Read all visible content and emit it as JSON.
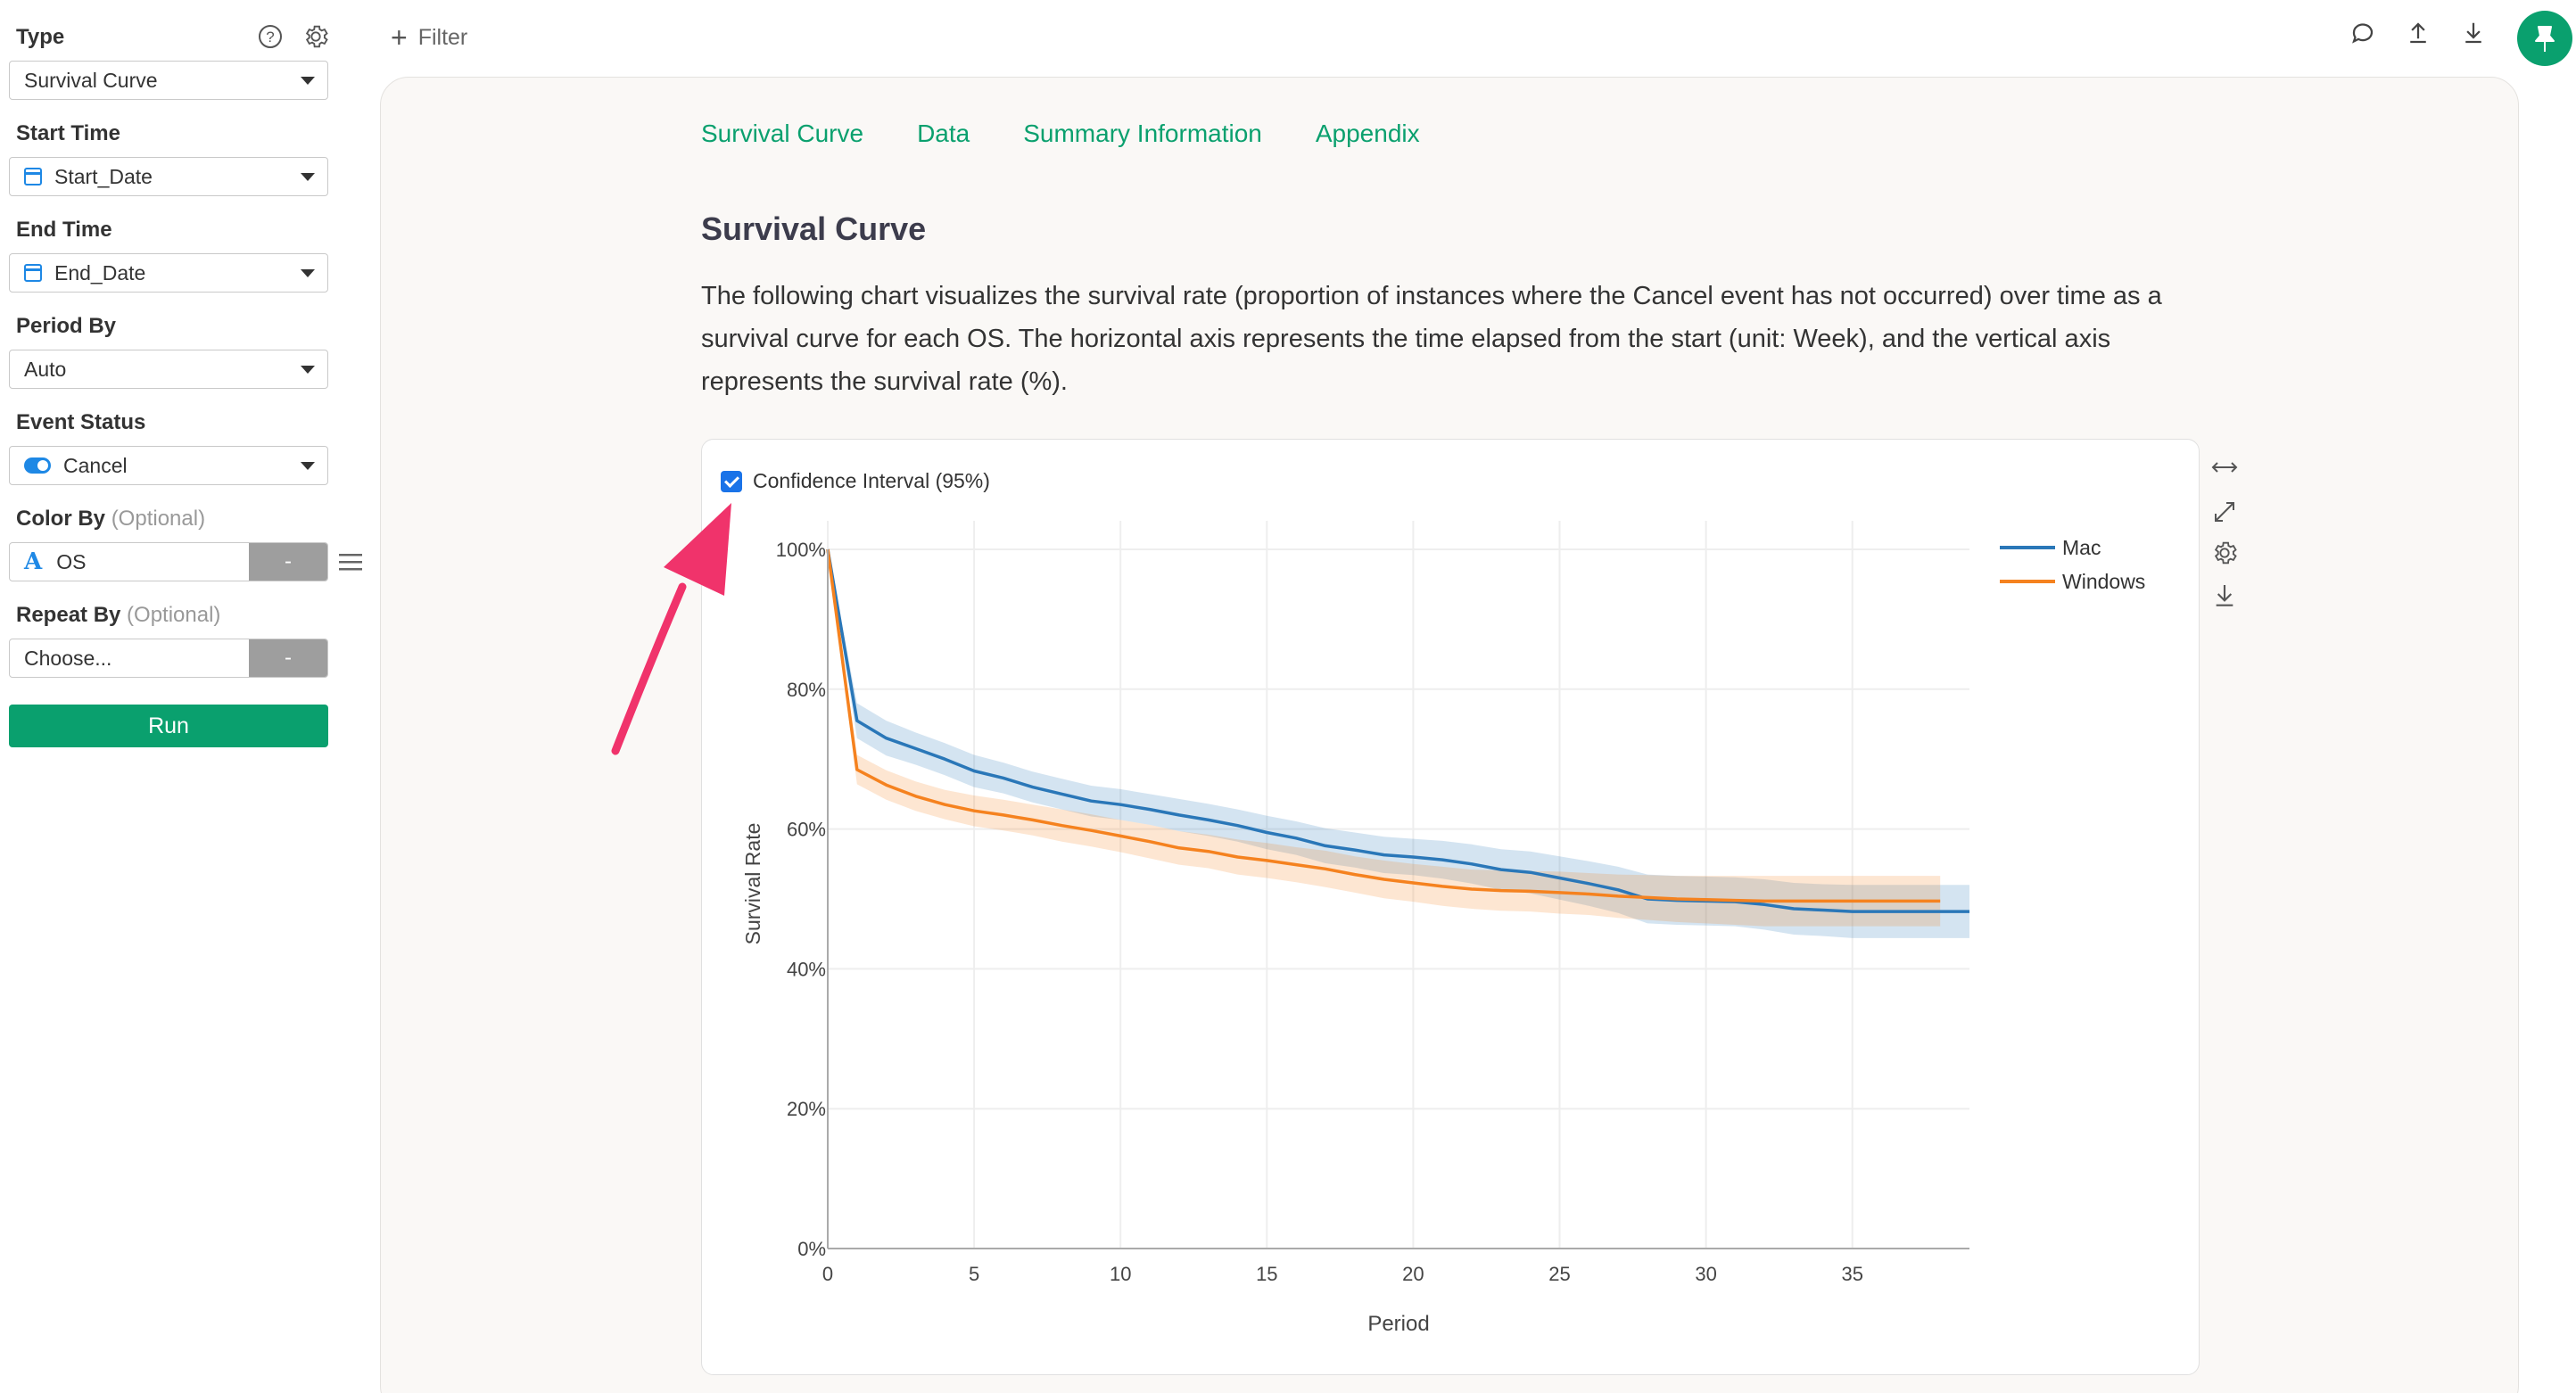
{
  "sidebar": {
    "type": {
      "label": "Type",
      "value": "Survival Curve"
    },
    "start_time": {
      "label": "Start Time",
      "value": "Start_Date"
    },
    "end_time": {
      "label": "End Time",
      "value": "End_Date"
    },
    "period_by": {
      "label": "Period By",
      "value": "Auto"
    },
    "event_status": {
      "label": "Event Status",
      "value": "Cancel"
    },
    "color_by": {
      "label": "Color By",
      "optional": "(Optional)",
      "value": "OS",
      "button": "-"
    },
    "repeat_by": {
      "label": "Repeat By",
      "optional": "(Optional)",
      "value": "Choose...",
      "button": "-"
    },
    "run_label": "Run"
  },
  "topbar": {
    "filter_label": "Filter"
  },
  "tabs": [
    "Survival Curve",
    "Data",
    "Summary Information",
    "Appendix"
  ],
  "section": {
    "title": "Survival Curve",
    "description": "The following chart visualizes the survival rate (proportion of instances where the Cancel event has not occurred) over time as a survival curve for each OS. The horizontal axis represents the time elapsed from the start (unit: Week), and the vertical axis represents the survival rate (%)."
  },
  "confidence_interval": {
    "label": "Confidence Interval (95%)",
    "checked": true
  },
  "colors": {
    "accent": "#0aa06e",
    "mac": "#2a77b8",
    "windows": "#f5821f",
    "arrow": "#f0336b"
  },
  "chart_data": {
    "type": "line",
    "xlabel": "Period",
    "ylabel": "Survival Rate",
    "xlim": [
      0,
      39
    ],
    "ylim": [
      0,
      100
    ],
    "x_ticks": [
      0,
      5,
      10,
      15,
      20,
      25,
      30,
      35
    ],
    "y_ticks": [
      "0%",
      "20%",
      "40%",
      "60%",
      "80%",
      "100%"
    ],
    "y_tick_values": [
      0,
      20,
      40,
      60,
      80,
      100
    ],
    "legend_position": "top-right",
    "grid": true,
    "series": [
      {
        "name": "Mac",
        "color": "#2a77b8",
        "x": [
          0,
          1,
          2,
          3,
          4,
          5,
          6,
          7,
          8,
          9,
          10,
          11,
          12,
          13,
          14,
          15,
          16,
          17,
          18,
          19,
          20,
          21,
          22,
          23,
          24,
          25,
          26,
          27,
          28,
          29,
          30,
          31,
          32,
          33,
          34,
          35,
          36,
          37,
          38,
          39
        ],
        "values": [
          100,
          75.5,
          73,
          71.5,
          70,
          68.3,
          67.3,
          66,
          65,
          64,
          63.5,
          62.8,
          62,
          61.3,
          60.5,
          59.5,
          58.7,
          57.6,
          57,
          56.3,
          56,
          55.6,
          55,
          54.2,
          53.8,
          53,
          52.2,
          51.3,
          50,
          49.8,
          49.7,
          49.6,
          49.2,
          48.6,
          48.4,
          48.2,
          48.2,
          48.2,
          48.2,
          48.2
        ],
        "ci_upper": [
          100,
          78,
          75.5,
          73.8,
          72.3,
          70.6,
          69.5,
          68.2,
          67.2,
          66.2,
          65.7,
          65,
          64.3,
          63.6,
          62.8,
          61.9,
          61.1,
          60.1,
          59.5,
          58.9,
          58.6,
          58.3,
          57.8,
          57.1,
          56.8,
          56.1,
          55.4,
          54.6,
          53.5,
          53.3,
          53.2,
          53.1,
          52.8,
          52.3,
          52.1,
          52,
          52,
          52,
          52,
          52
        ],
        "ci_lower": [
          100,
          73,
          70.5,
          69.2,
          67.7,
          66,
          65.1,
          63.8,
          62.8,
          61.8,
          61.3,
          60.6,
          59.7,
          59,
          58.2,
          57.1,
          56.3,
          55.1,
          54.5,
          53.7,
          53.4,
          52.9,
          52.2,
          51.3,
          50.8,
          49.9,
          49,
          48,
          46.5,
          46.3,
          46.2,
          46.1,
          45.6,
          44.9,
          44.7,
          44.4,
          44.4,
          44.4,
          44.4,
          44.4
        ]
      },
      {
        "name": "Windows",
        "color": "#f5821f",
        "x": [
          0,
          1,
          2,
          3,
          4,
          5,
          6,
          7,
          8,
          9,
          10,
          11,
          12,
          13,
          14,
          15,
          16,
          17,
          18,
          19,
          20,
          21,
          22,
          23,
          24,
          25,
          26,
          27,
          28,
          29,
          30,
          31,
          32,
          33,
          34,
          35,
          36,
          37,
          38
        ],
        "values": [
          100,
          68.5,
          66.3,
          64.7,
          63.5,
          62.6,
          62,
          61.3,
          60.5,
          59.8,
          59,
          58.2,
          57.3,
          56.8,
          56,
          55.5,
          54.9,
          54.3,
          53.5,
          52.8,
          52.3,
          51.8,
          51.4,
          51.2,
          51.1,
          50.9,
          50.7,
          50.4,
          50.2,
          50,
          49.9,
          49.8,
          49.7,
          49.7,
          49.7,
          49.7,
          49.7,
          49.7,
          49.7
        ],
        "ci_upper": [
          100,
          70.6,
          68.4,
          66.8,
          65.6,
          64.8,
          64.2,
          63.5,
          62.8,
          62.1,
          61.3,
          60.6,
          59.7,
          59.2,
          58.5,
          58,
          57.4,
          56.9,
          56.1,
          55.5,
          55,
          54.6,
          54.2,
          54.1,
          54,
          53.9,
          53.7,
          53.5,
          53.4,
          53.3,
          53.3,
          53.3,
          53.3,
          53.3,
          53.3,
          53.3,
          53.3,
          53.3,
          53.3
        ],
        "ci_lower": [
          100,
          66.4,
          64.2,
          62.6,
          61.4,
          60.4,
          59.8,
          59.1,
          58.2,
          57.5,
          56.7,
          55.8,
          54.9,
          54.4,
          53.5,
          53,
          52.4,
          51.7,
          50.9,
          50.1,
          49.6,
          49,
          48.6,
          48.3,
          48.2,
          47.9,
          47.7,
          47.3,
          47,
          46.7,
          46.5,
          46.3,
          46.1,
          46.1,
          46.1,
          46.1,
          46.1,
          46.1,
          46.1
        ]
      }
    ]
  }
}
